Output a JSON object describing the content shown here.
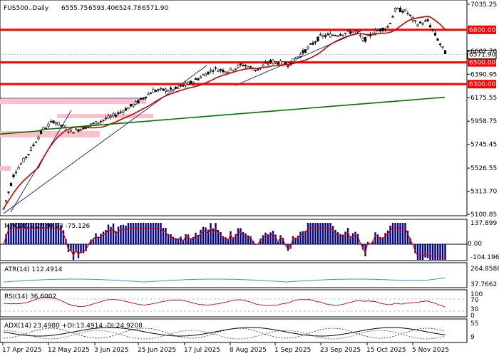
{
  "chart_data": {
    "type": "candlestick",
    "title": "FUS500..Daily",
    "ohlc_text": [
      "6555.75",
      "6593.40",
      "6524.78",
      "6571.90"
    ],
    "price_axis": {
      "min": 5100.85,
      "max": 7035.25,
      "ticks": [
        "7035.25",
        "6602.70",
        "6390.95",
        "6175.55",
        "5958.75",
        "5745.45",
        "5526.55",
        "5313.70",
        "5100.85"
      ]
    },
    "current_price": "6571.90",
    "levels": [
      {
        "label": "6800.00",
        "value": 6800,
        "color": "#ff0000"
      },
      {
        "label": "6500.00",
        "value": 6500,
        "color": "#ff0000"
      },
      {
        "label": "6300.00",
        "value": 6300,
        "color": "#ff0000"
      }
    ],
    "x_labels": [
      "17 Apr 2025",
      "12 May 2025",
      "3 Jun 2025",
      "25 Jun 2025",
      "17 Jul 2025",
      "8 Aug 2025",
      "1 Sep 2025",
      "23 Sep 2025",
      "15 Oct 2025",
      "5 Nov 2025"
    ],
    "indicators": {
      "macd": {
        "label": "MACD(12,26,9) 23 -75.126",
        "ticks": [
          "137.899",
          "0.00",
          "-104.196"
        ]
      },
      "atr": {
        "label": "ATR(14) 112.4914",
        "ticks": [
          "264.8588",
          "37.7662"
        ]
      },
      "rsi": {
        "label": "RSI(14) 36.6002",
        "ticks": [
          "100",
          "70",
          "30",
          "0"
        ]
      },
      "adx": {
        "label": "ADX(14) 23.4980 +DI:13.4914 -DI:24.9208",
        "ticks": [
          "55",
          "9"
        ]
      }
    },
    "colors": {
      "bull": "#000000",
      "bear": "#000000",
      "ma_fast": "#cc0000",
      "ma_slow": "#007700",
      "trend": "#000088",
      "macd": "#000088",
      "zone": "#ffc0cb"
    }
  }
}
